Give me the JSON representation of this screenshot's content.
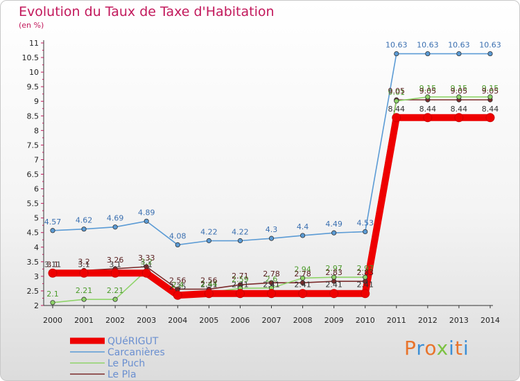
{
  "chart_data": {
    "type": "line",
    "title": "Evolution du Taux de Taxe d'Habitation",
    "unit": "(en %)",
    "x": [
      2000,
      2001,
      2002,
      2003,
      2004,
      2005,
      2006,
      2007,
      2008,
      2009,
      2010,
      2011,
      2012,
      2013,
      2014
    ],
    "ylim": [
      2,
      11
    ],
    "yticks": [
      "2",
      "2.5",
      "3",
      "3.5",
      "4",
      "4.5",
      "5",
      "5.5",
      "6",
      "6.5",
      "7",
      "7.5",
      "8",
      "8.5",
      "9",
      "9.5",
      "10",
      "10.5",
      "11"
    ],
    "grid": false,
    "legend_position": "bottom-left",
    "series": [
      {
        "name": "QUéRIGUT",
        "color": "#ee0000",
        "values": [
          3.11,
          3.11,
          3.11,
          3.11,
          2.35,
          2.41,
          2.41,
          2.41,
          2.41,
          2.41,
          2.41,
          8.44,
          8.44,
          8.44,
          8.44
        ],
        "labels": [
          "3.11",
          "3.1",
          "3.1",
          "3.1",
          "2.35",
          "2.41",
          "2.41",
          "2.41",
          "2.41",
          "2.41",
          "2.41",
          "8.44",
          "8.44",
          "8.44",
          "8.44"
        ]
      },
      {
        "name": "Carcanières",
        "color": "#5b9bd5",
        "values": [
          4.57,
          4.62,
          4.69,
          4.89,
          4.08,
          4.22,
          4.22,
          4.3,
          4.4,
          4.49,
          4.53,
          10.63,
          10.63,
          10.63,
          10.63
        ],
        "labels": [
          "4.57",
          "4.62",
          "4.69",
          "4.89",
          "4.08",
          "4.22",
          "4.22",
          "4.3",
          "4.4",
          "4.49",
          "4.53",
          "10.63",
          "10.63",
          "10.63",
          "10.63"
        ]
      },
      {
        "name": "Le Puch",
        "color": "#8fd46a",
        "values": [
          2.1,
          2.21,
          2.21,
          3.2,
          2.4,
          2.44,
          2.59,
          2.6,
          2.94,
          2.97,
          2.97,
          9.01,
          9.15,
          9.15,
          9.15
        ],
        "labels": [
          "2.1",
          "2.21",
          "2.21",
          "3.2",
          "2.4",
          "2.44",
          "2.59",
          "2.6",
          "2.94",
          "2.97",
          "2.97",
          "9.01",
          "9.15",
          "9.15",
          "9.15"
        ]
      },
      {
        "name": "Le Pla",
        "color": "#7b2b2b",
        "values": [
          3.1,
          3.2,
          3.26,
          3.33,
          2.56,
          2.56,
          2.71,
          2.78,
          2.78,
          2.83,
          2.83,
          9.05,
          9.05,
          9.05,
          9.05
        ],
        "labels": [
          "3.1",
          "3.2",
          "3.26",
          "3.33",
          "2.56",
          "2.56",
          "2.71",
          "2.78",
          "2.78",
          "2.83",
          "2.83",
          "9.05",
          "9.05",
          "9.05",
          "9.05"
        ]
      }
    ]
  },
  "logo": {
    "text": "Proxiti",
    "colors": [
      "#e8742c",
      "#3c8fd6",
      "#e8742c",
      "#7cc242",
      "#3c8fd6",
      "#e8742c",
      "#3c8fd6"
    ]
  }
}
